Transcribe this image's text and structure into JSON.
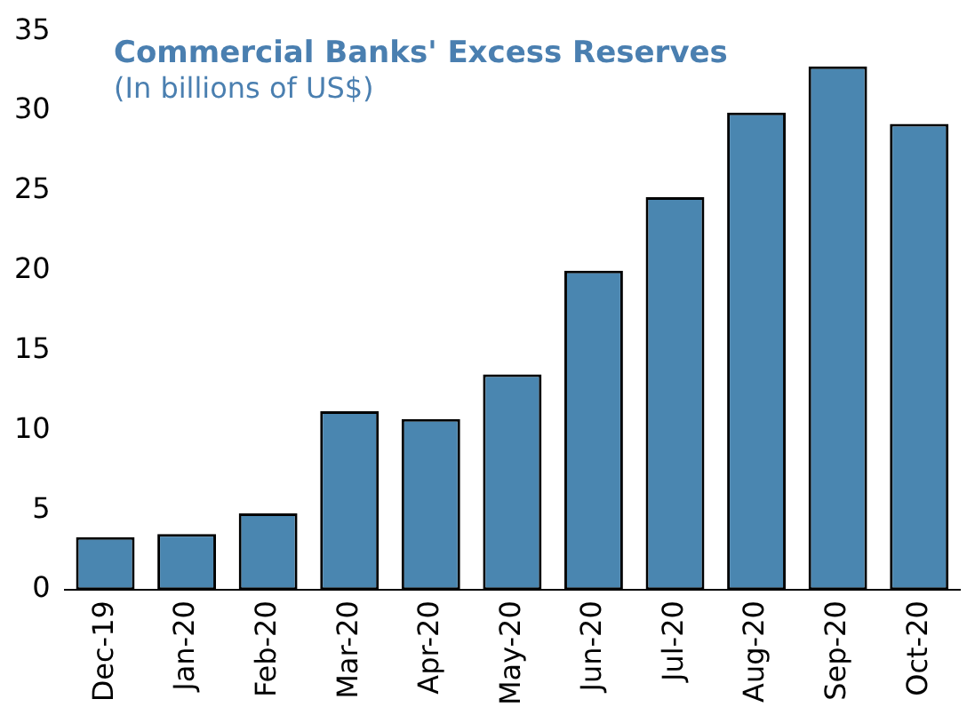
{
  "chart_data": {
    "type": "bar",
    "title": "Commercial Banks' Excess Reserves",
    "subtitle": "(In billions of US$)",
    "categories": [
      "Dec-19",
      "Jan-20",
      "Feb-20",
      "Mar-20",
      "Apr-20",
      "May-20",
      "Jun-20",
      "Jul-20",
      "Aug-20",
      "Sep-20",
      "Oct-20"
    ],
    "values": [
      3.3,
      3.5,
      4.8,
      11.2,
      10.7,
      13.5,
      20.0,
      24.6,
      29.9,
      32.8,
      29.2
    ],
    "color": "#4a86b0",
    "ylim": [
      0,
      35
    ],
    "yticks": [
      0,
      5,
      10,
      15,
      20,
      25,
      30,
      35
    ],
    "grid": false,
    "legend": false
  }
}
